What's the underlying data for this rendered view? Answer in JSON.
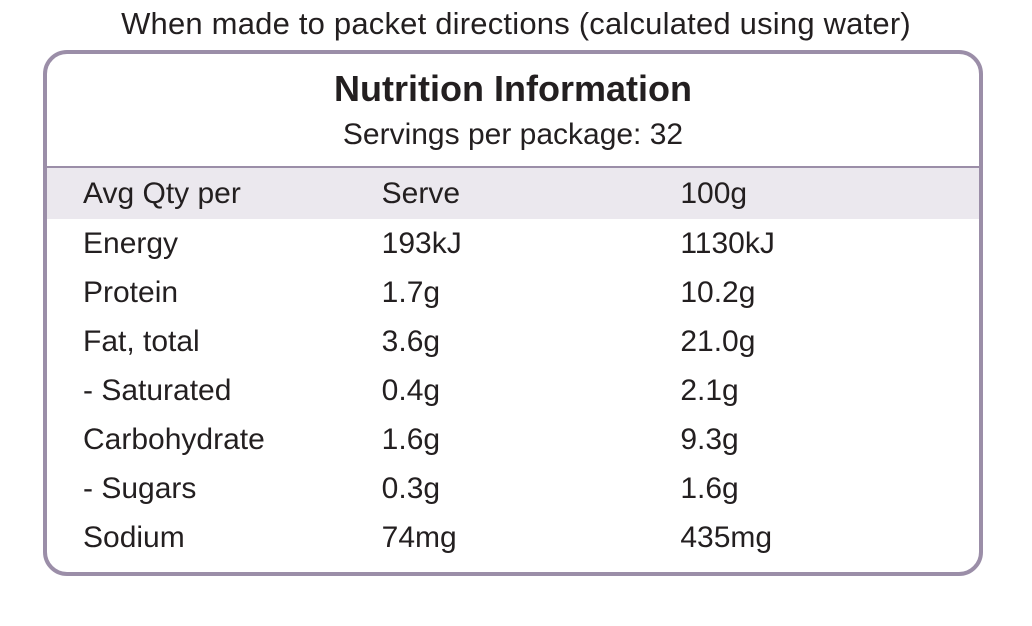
{
  "caption": "When made to packet directions (calculated using water)",
  "panel": {
    "title": "Nutrition Information",
    "servings": "Servings per package: 32"
  },
  "table": {
    "headers": [
      "Avg Qty per",
      "Serve",
      "100g"
    ],
    "rows": [
      [
        "Energy",
        "193kJ",
        "1130kJ"
      ],
      [
        "Protein",
        "1.7g",
        "10.2g"
      ],
      [
        "Fat, total",
        "3.6g",
        "21.0g"
      ],
      [
        "- Saturated",
        "0.4g",
        "2.1g"
      ],
      [
        "Carbohydrate",
        "1.6g",
        "9.3g"
      ],
      [
        "- Sugars",
        "0.3g",
        "1.6g"
      ],
      [
        "Sodium",
        "74mg",
        "435mg"
      ]
    ]
  },
  "colors": {
    "border": "#9b8ea8",
    "header_band": "#ebe8ee",
    "text": "#231f20"
  }
}
